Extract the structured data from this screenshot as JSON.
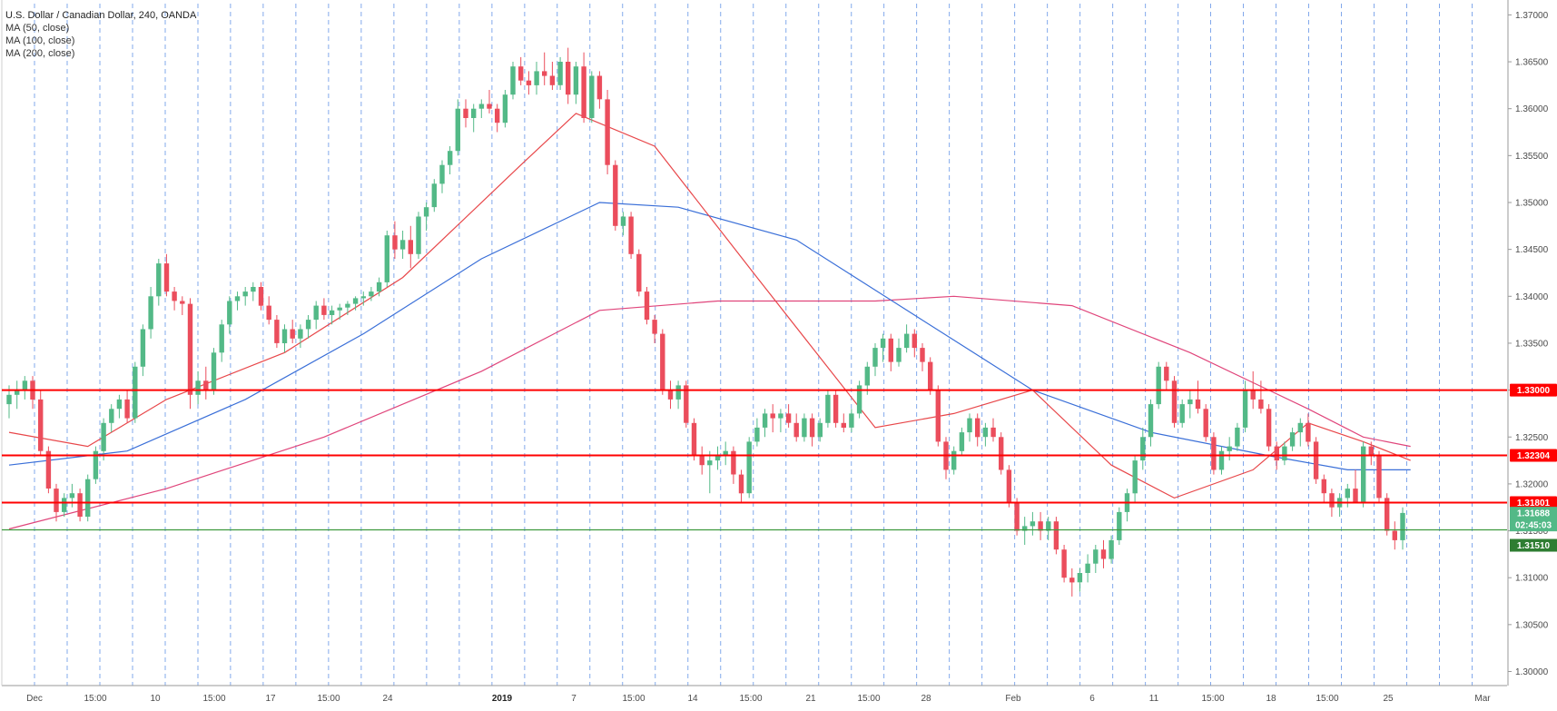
{
  "legend": {
    "title": "U.S. Dollar / Canadian Dollar, 240, OANDA",
    "ma50": "MA (50, close)",
    "ma100": "MA (100, close)",
    "ma200": "MA (200, close)"
  },
  "colors": {
    "up": "#53b987",
    "down": "#eb4d5c",
    "ma50": "#e8474a",
    "ma100": "#3a6fd8",
    "ma200": "#e0457b",
    "level": "#ff0000",
    "current_line": "#3f9a3f",
    "vgrid": "#2f6fde",
    "axis_text": "#4a4a4a"
  },
  "chart_data": {
    "type": "candlestick",
    "title": "U.S. Dollar / Canadian Dollar, 240, OANDA",
    "ylim": [
      1.2985,
      1.3712
    ],
    "y_ticks": [
      "1.37000",
      "1.36500",
      "1.36000",
      "1.35500",
      "1.35000",
      "1.34500",
      "1.34000",
      "1.33500",
      "1.33000",
      "1.32500",
      "1.32000",
      "1.31500",
      "1.31000",
      "1.30500",
      "1.30000"
    ],
    "x_ticks": [
      "Dec",
      "15:00",
      "10",
      "15:00",
      "17",
      "15:00",
      "24",
      "2019",
      "7",
      "15:00",
      "14",
      "15:00",
      "21",
      "15:00",
      "28",
      "Feb",
      "6",
      "11",
      "15:00",
      "18",
      "15:00",
      "25",
      "Mar"
    ],
    "horizontal_levels": [
      {
        "value": 1.33,
        "label": "1.33000"
      },
      {
        "value": 1.32304,
        "label": "1.32304"
      },
      {
        "value": 1.31801,
        "label": "1.31801"
      }
    ],
    "current_price": {
      "value": 1.31688,
      "label": "1.31688"
    },
    "countdown": "02:45:03",
    "support_line": {
      "value": 1.3151,
      "label": "1.31510"
    },
    "candles": [
      [
        1.3285,
        1.3305,
        1.327,
        1.3295
      ],
      [
        1.3295,
        1.331,
        1.328,
        1.33
      ],
      [
        1.33,
        1.3315,
        1.329,
        1.331
      ],
      [
        1.331,
        1.3315,
        1.328,
        1.329
      ],
      [
        1.329,
        1.33,
        1.323,
        1.3235
      ],
      [
        1.3235,
        1.324,
        1.319,
        1.3195
      ],
      [
        1.3195,
        1.32,
        1.316,
        1.317
      ],
      [
        1.317,
        1.319,
        1.3165,
        1.3185
      ],
      [
        1.3185,
        1.32,
        1.3175,
        1.319
      ],
      [
        1.319,
        1.3195,
        1.316,
        1.3165
      ],
      [
        1.3165,
        1.321,
        1.316,
        1.3205
      ],
      [
        1.3205,
        1.324,
        1.32,
        1.3235
      ],
      [
        1.3235,
        1.327,
        1.3225,
        1.3265
      ],
      [
        1.3265,
        1.3285,
        1.3255,
        1.328
      ],
      [
        1.328,
        1.3295,
        1.327,
        1.329
      ],
      [
        1.329,
        1.33,
        1.3265,
        1.327
      ],
      [
        1.327,
        1.333,
        1.3265,
        1.3325
      ],
      [
        1.3325,
        1.337,
        1.3315,
        1.3365
      ],
      [
        1.3365,
        1.341,
        1.3355,
        1.34
      ],
      [
        1.34,
        1.344,
        1.339,
        1.3435
      ],
      [
        1.3435,
        1.3445,
        1.34,
        1.3405
      ],
      [
        1.3405,
        1.341,
        1.3385,
        1.3395
      ],
      [
        1.3395,
        1.34,
        1.338,
        1.3392
      ],
      [
        1.3392,
        1.3398,
        1.328,
        1.3295
      ],
      [
        1.3295,
        1.332,
        1.3285,
        1.331
      ],
      [
        1.331,
        1.3325,
        1.329,
        1.33
      ],
      [
        1.33,
        1.3345,
        1.3295,
        1.334
      ],
      [
        1.334,
        1.3375,
        1.333,
        1.337
      ],
      [
        1.337,
        1.34,
        1.336,
        1.3395
      ],
      [
        1.3395,
        1.3405,
        1.3385,
        1.34
      ],
      [
        1.34,
        1.341,
        1.339,
        1.3405
      ],
      [
        1.3405,
        1.3415,
        1.3395,
        1.341
      ],
      [
        1.341,
        1.3415,
        1.3385,
        1.339
      ],
      [
        1.339,
        1.34,
        1.337,
        1.3375
      ],
      [
        1.3375,
        1.338,
        1.3345,
        1.335
      ],
      [
        1.335,
        1.337,
        1.334,
        1.3365
      ],
      [
        1.3365,
        1.3375,
        1.335,
        1.3355
      ],
      [
        1.3355,
        1.337,
        1.3345,
        1.3365
      ],
      [
        1.3365,
        1.338,
        1.3355,
        1.3375
      ],
      [
        1.3375,
        1.3395,
        1.3365,
        1.339
      ],
      [
        1.339,
        1.3398,
        1.3375,
        1.338
      ],
      [
        1.338,
        1.339,
        1.337,
        1.3385
      ],
      [
        1.3385,
        1.3392,
        1.3375,
        1.3388
      ],
      [
        1.3388,
        1.3395,
        1.338,
        1.3392
      ],
      [
        1.3392,
        1.34,
        1.3385,
        1.3398
      ],
      [
        1.3398,
        1.3405,
        1.339,
        1.34
      ],
      [
        1.34,
        1.341,
        1.3395,
        1.3405
      ],
      [
        1.3405,
        1.342,
        1.34,
        1.3415
      ],
      [
        1.3415,
        1.347,
        1.341,
        1.3465
      ],
      [
        1.3465,
        1.348,
        1.344,
        1.345
      ],
      [
        1.345,
        1.347,
        1.344,
        1.346
      ],
      [
        1.346,
        1.3475,
        1.343,
        1.3445
      ],
      [
        1.3445,
        1.349,
        1.344,
        1.3485
      ],
      [
        1.3485,
        1.35,
        1.347,
        1.3495
      ],
      [
        1.3495,
        1.3525,
        1.349,
        1.352
      ],
      [
        1.352,
        1.3545,
        1.351,
        1.354
      ],
      [
        1.354,
        1.356,
        1.353,
        1.3555
      ],
      [
        1.3555,
        1.361,
        1.355,
        1.36
      ],
      [
        1.36,
        1.361,
        1.358,
        1.359
      ],
      [
        1.359,
        1.3605,
        1.3575,
        1.36
      ],
      [
        1.36,
        1.361,
        1.359,
        1.3605
      ],
      [
        1.3605,
        1.362,
        1.3595,
        1.36
      ],
      [
        1.36,
        1.3605,
        1.3575,
        1.3585
      ],
      [
        1.3585,
        1.362,
        1.358,
        1.3615
      ],
      [
        1.3615,
        1.365,
        1.361,
        1.3645
      ],
      [
        1.3645,
        1.3655,
        1.3625,
        1.363
      ],
      [
        1.363,
        1.364,
        1.3615,
        1.3625
      ],
      [
        1.3625,
        1.365,
        1.3615,
        1.364
      ],
      [
        1.364,
        1.366,
        1.3625,
        1.3635
      ],
      [
        1.3635,
        1.365,
        1.362,
        1.3625
      ],
      [
        1.3625,
        1.3655,
        1.362,
        1.365
      ],
      [
        1.365,
        1.3665,
        1.3605,
        1.3615
      ],
      [
        1.3615,
        1.365,
        1.3605,
        1.3645
      ],
      [
        1.3645,
        1.366,
        1.3585,
        1.359
      ],
      [
        1.359,
        1.364,
        1.3585,
        1.3635
      ],
      [
        1.3635,
        1.364,
        1.36,
        1.361
      ],
      [
        1.361,
        1.362,
        1.353,
        1.354
      ],
      [
        1.354,
        1.3545,
        1.347,
        1.3475
      ],
      [
        1.3475,
        1.349,
        1.3465,
        1.3485
      ],
      [
        1.3485,
        1.349,
        1.344,
        1.3445
      ],
      [
        1.3445,
        1.345,
        1.34,
        1.3405
      ],
      [
        1.3405,
        1.341,
        1.337,
        1.3375
      ],
      [
        1.3375,
        1.338,
        1.335,
        1.336
      ],
      [
        1.336,
        1.3365,
        1.3295,
        1.33
      ],
      [
        1.33,
        1.331,
        1.328,
        1.329
      ],
      [
        1.329,
        1.331,
        1.328,
        1.3305
      ],
      [
        1.3305,
        1.331,
        1.326,
        1.3265
      ],
      [
        1.3265,
        1.327,
        1.3225,
        1.323
      ],
      [
        1.323,
        1.324,
        1.321,
        1.322
      ],
      [
        1.322,
        1.3235,
        1.319,
        1.3225
      ],
      [
        1.3225,
        1.324,
        1.3215,
        1.323
      ],
      [
        1.323,
        1.3245,
        1.322,
        1.3235
      ],
      [
        1.3235,
        1.324,
        1.32,
        1.321
      ],
      [
        1.321,
        1.3215,
        1.318,
        1.319
      ],
      [
        1.319,
        1.325,
        1.3185,
        1.3245
      ],
      [
        1.3245,
        1.327,
        1.324,
        1.326
      ],
      [
        1.326,
        1.328,
        1.325,
        1.3275
      ],
      [
        1.3275,
        1.3285,
        1.3255,
        1.327
      ],
      [
        1.327,
        1.328,
        1.3255,
        1.3275
      ],
      [
        1.3275,
        1.3285,
        1.326,
        1.3265
      ],
      [
        1.3265,
        1.3275,
        1.3245,
        1.325
      ],
      [
        1.325,
        1.3275,
        1.3245,
        1.327
      ],
      [
        1.327,
        1.3275,
        1.324,
        1.325
      ],
      [
        1.325,
        1.327,
        1.3245,
        1.3265
      ],
      [
        1.3265,
        1.33,
        1.326,
        1.3295
      ],
      [
        1.3295,
        1.33,
        1.326,
        1.3265
      ],
      [
        1.3265,
        1.3275,
        1.3255,
        1.326
      ],
      [
        1.326,
        1.328,
        1.3255,
        1.3275
      ],
      [
        1.3275,
        1.331,
        1.327,
        1.3305
      ],
      [
        1.3305,
        1.333,
        1.3295,
        1.3325
      ],
      [
        1.3325,
        1.335,
        1.3315,
        1.3345
      ],
      [
        1.3345,
        1.336,
        1.333,
        1.3355
      ],
      [
        1.3355,
        1.336,
        1.332,
        1.333
      ],
      [
        1.333,
        1.3355,
        1.3325,
        1.3345
      ],
      [
        1.3345,
        1.337,
        1.334,
        1.336
      ],
      [
        1.336,
        1.3365,
        1.3335,
        1.3345
      ],
      [
        1.3345,
        1.335,
        1.332,
        1.333
      ],
      [
        1.333,
        1.3335,
        1.3295,
        1.33
      ],
      [
        1.33,
        1.3305,
        1.324,
        1.3245
      ],
      [
        1.3245,
        1.325,
        1.3205,
        1.3215
      ],
      [
        1.3215,
        1.324,
        1.321,
        1.3235
      ],
      [
        1.3235,
        1.326,
        1.323,
        1.3255
      ],
      [
        1.3255,
        1.3275,
        1.3245,
        1.327
      ],
      [
        1.327,
        1.3275,
        1.324,
        1.325
      ],
      [
        1.325,
        1.3265,
        1.324,
        1.326
      ],
      [
        1.326,
        1.327,
        1.3245,
        1.325
      ],
      [
        1.325,
        1.3255,
        1.321,
        1.3215
      ],
      [
        1.3215,
        1.322,
        1.3175,
        1.318
      ],
      [
        1.318,
        1.3185,
        1.3145,
        1.315
      ],
      [
        1.315,
        1.3165,
        1.3135,
        1.3155
      ],
      [
        1.3155,
        1.317,
        1.3145,
        1.316
      ],
      [
        1.316,
        1.317,
        1.314,
        1.315
      ],
      [
        1.315,
        1.3165,
        1.314,
        1.316
      ],
      [
        1.316,
        1.3165,
        1.3125,
        1.313
      ],
      [
        1.313,
        1.3135,
        1.3095,
        1.31
      ],
      [
        1.31,
        1.311,
        1.308,
        1.3095
      ],
      [
        1.3095,
        1.311,
        1.3085,
        1.3105
      ],
      [
        1.3105,
        1.3125,
        1.3095,
        1.3115
      ],
      [
        1.3115,
        1.3135,
        1.3105,
        1.313
      ],
      [
        1.313,
        1.314,
        1.311,
        1.312
      ],
      [
        1.312,
        1.3145,
        1.3115,
        1.314
      ],
      [
        1.314,
        1.3175,
        1.3135,
        1.317
      ],
      [
        1.317,
        1.3195,
        1.316,
        1.319
      ],
      [
        1.319,
        1.323,
        1.318,
        1.3225
      ],
      [
        1.3225,
        1.326,
        1.3215,
        1.325
      ],
      [
        1.325,
        1.329,
        1.324,
        1.3285
      ],
      [
        1.3285,
        1.333,
        1.328,
        1.3325
      ],
      [
        1.3325,
        1.333,
        1.33,
        1.331
      ],
      [
        1.331,
        1.3315,
        1.326,
        1.3265
      ],
      [
        1.3265,
        1.329,
        1.326,
        1.3285
      ],
      [
        1.3285,
        1.33,
        1.327,
        1.329
      ],
      [
        1.329,
        1.331,
        1.3275,
        1.328
      ],
      [
        1.328,
        1.3285,
        1.3245,
        1.325
      ],
      [
        1.325,
        1.3255,
        1.321,
        1.3215
      ],
      [
        1.3215,
        1.324,
        1.321,
        1.3235
      ],
      [
        1.3235,
        1.325,
        1.3225,
        1.324
      ],
      [
        1.324,
        1.3265,
        1.3235,
        1.326
      ],
      [
        1.326,
        1.331,
        1.3255,
        1.33
      ],
      [
        1.33,
        1.332,
        1.328,
        1.329
      ],
      [
        1.329,
        1.331,
        1.3275,
        1.328
      ],
      [
        1.328,
        1.3285,
        1.3235,
        1.324
      ],
      [
        1.324,
        1.3245,
        1.3215,
        1.3225
      ],
      [
        1.3225,
        1.3245,
        1.322,
        1.324
      ],
      [
        1.324,
        1.326,
        1.3235,
        1.3255
      ],
      [
        1.3255,
        1.327,
        1.324,
        1.3265
      ],
      [
        1.3265,
        1.3275,
        1.324,
        1.3245
      ],
      [
        1.3245,
        1.325,
        1.32,
        1.3205
      ],
      [
        1.3205,
        1.321,
        1.318,
        1.319
      ],
      [
        1.319,
        1.3195,
        1.3165,
        1.3175
      ],
      [
        1.3175,
        1.319,
        1.3165,
        1.3185
      ],
      [
        1.3185,
        1.32,
        1.3175,
        1.3195
      ],
      [
        1.3195,
        1.3215,
        1.3185,
        1.318
      ],
      [
        1.318,
        1.3245,
        1.3175,
        1.324
      ],
      [
        1.324,
        1.3245,
        1.322,
        1.323
      ],
      [
        1.323,
        1.3235,
        1.318,
        1.3185
      ],
      [
        1.3185,
        1.319,
        1.3145,
        1.315
      ],
      [
        1.315,
        1.316,
        1.313,
        1.314
      ],
      [
        1.314,
        1.3175,
        1.313,
        1.3169
      ]
    ],
    "ma50_points": [
      [
        0,
        1.3255
      ],
      [
        10,
        1.324
      ],
      [
        20,
        1.329
      ],
      [
        35,
        1.334
      ],
      [
        50,
        1.342
      ],
      [
        65,
        1.354
      ],
      [
        72,
        1.3595
      ],
      [
        82,
        1.356
      ],
      [
        95,
        1.342
      ],
      [
        110,
        1.326
      ],
      [
        120,
        1.3275
      ],
      [
        130,
        1.33
      ],
      [
        140,
        1.322
      ],
      [
        148,
        1.3185
      ],
      [
        158,
        1.3215
      ],
      [
        165,
        1.3265
      ],
      [
        172,
        1.3245
      ],
      [
        178,
        1.3225
      ]
    ],
    "ma100_points": [
      [
        0,
        1.322
      ],
      [
        15,
        1.3235
      ],
      [
        30,
        1.329
      ],
      [
        45,
        1.336
      ],
      [
        60,
        1.344
      ],
      [
        75,
        1.35
      ],
      [
        85,
        1.3495
      ],
      [
        100,
        1.346
      ],
      [
        115,
        1.338
      ],
      [
        130,
        1.33
      ],
      [
        145,
        1.3255
      ],
      [
        160,
        1.323
      ],
      [
        170,
        1.3215
      ],
      [
        178,
        1.3215
      ]
    ],
    "ma200_points": [
      [
        0,
        1.3152
      ],
      [
        20,
        1.3195
      ],
      [
        40,
        1.325
      ],
      [
        60,
        1.332
      ],
      [
        75,
        1.3385
      ],
      [
        90,
        1.3395
      ],
      [
        110,
        1.3395
      ],
      [
        120,
        1.34
      ],
      [
        135,
        1.339
      ],
      [
        150,
        1.334
      ],
      [
        165,
        1.328
      ],
      [
        172,
        1.325
      ],
      [
        178,
        1.324
      ]
    ]
  }
}
